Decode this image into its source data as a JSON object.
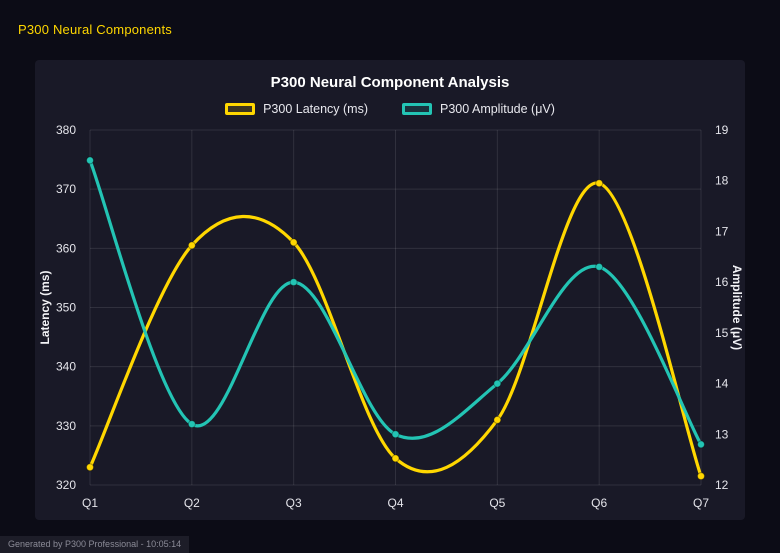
{
  "header": {
    "title": "P300 Neural Components"
  },
  "chart_data": {
    "type": "line",
    "title": "P300 Neural Component Analysis",
    "categories": [
      "Q1",
      "Q2",
      "Q3",
      "Q4",
      "Q5",
      "Q6",
      "Q7"
    ],
    "series": [
      {
        "name": "P300 Latency (ms)",
        "axis": "left",
        "color": "#ffd700",
        "values": [
          323,
          360.5,
          361,
          324.5,
          331,
          371,
          321.5
        ]
      },
      {
        "name": "P300 Amplitude (μV)",
        "axis": "right",
        "color": "#23c4b4",
        "values": [
          18.4,
          13.2,
          16.0,
          13.0,
          14.0,
          16.3,
          12.8
        ]
      }
    ],
    "xlabel": "",
    "ylabel_left": "Latency (ms)",
    "ylabel_right": "Amplitude (μV)",
    "ylim_left": [
      320,
      380
    ],
    "ytick_step_left": 10,
    "ylim_right": [
      12,
      19
    ],
    "ytick_step_right": 1,
    "grid": true,
    "legend_position": "top",
    "smoothing": "spline"
  },
  "footer": {
    "text": "Generated by P300 Professional - 10:05:14"
  }
}
